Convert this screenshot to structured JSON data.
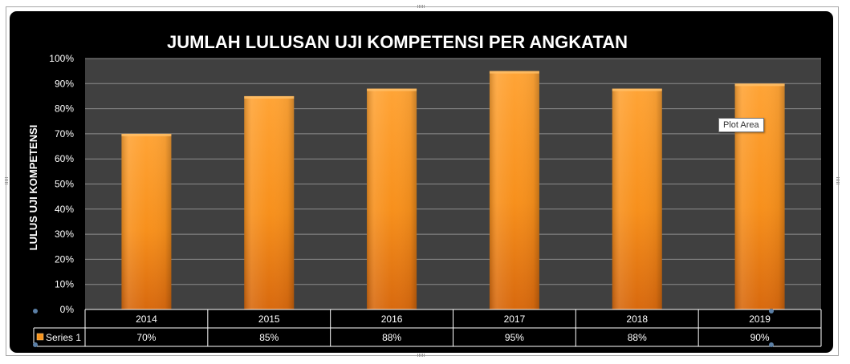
{
  "chart_data": {
    "type": "bar",
    "title": "JUMLAH LULUSAN UJI KOMPETENSI PER ANGKATAN",
    "ylabel": "LULUS UJI KOMPETENSI",
    "xlabel": "",
    "categories": [
      "2014",
      "2015",
      "2016",
      "2017",
      "2018",
      "2019"
    ],
    "series": [
      {
        "name": "Series 1",
        "values": [
          70,
          85,
          88,
          95,
          88,
          90
        ]
      }
    ],
    "data_table_labels": [
      "70%",
      "85%",
      "88%",
      "95%",
      "88%",
      "90%"
    ],
    "ylim": [
      0,
      100
    ],
    "y_ticks": [
      0,
      10,
      20,
      30,
      40,
      50,
      60,
      70,
      80,
      90,
      100
    ],
    "y_tick_labels": [
      "0%",
      "10%",
      "20%",
      "30%",
      "40%",
      "50%",
      "60%",
      "70%",
      "80%",
      "90%",
      "100%"
    ],
    "grid": true,
    "legend": "data-table",
    "colors": {
      "background": "#000000",
      "plot_area": "#404040",
      "gridline": "#8c8c8c",
      "bar": "#f7941d",
      "bar_light": "#ffab40",
      "bar_dark": "#c9620c",
      "text": "#ffffff"
    }
  },
  "tooltip": {
    "text": "Plot Area"
  }
}
